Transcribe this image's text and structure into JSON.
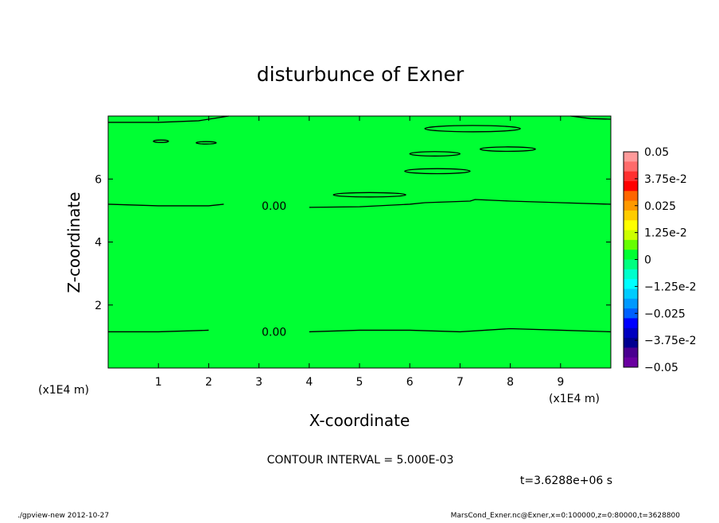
{
  "chart_data": {
    "type": "contour",
    "title": "disturbunce of Exner",
    "xlabel": "X-coordinate",
    "ylabel": "Z-coordinate",
    "x_unit": "(x1E4 m)",
    "y_unit": "(x1E4 m)",
    "xlim": [
      0,
      10
    ],
    "ylim": [
      0,
      8
    ],
    "x_ticks": [
      "1",
      "2",
      "3",
      "4",
      "5",
      "6",
      "7",
      "8",
      "9"
    ],
    "y_ticks": [
      "2",
      "4",
      "6"
    ],
    "x_tick_values": [
      1,
      2,
      3,
      4,
      5,
      6,
      7,
      8,
      9
    ],
    "y_tick_values": [
      2,
      4,
      6
    ],
    "fill_color": "#00ff33",
    "contours": [
      {
        "level_label": "0.00",
        "label_at": [
          3.3,
          5.15
        ],
        "points": [
          [
            0,
            5.2
          ],
          [
            1,
            5.15
          ],
          [
            2,
            5.15
          ],
          [
            2.3,
            5.2
          ],
          [
            3,
            5.15
          ],
          [
            3.3,
            5.15
          ],
          [
            4,
            5.1
          ],
          [
            5,
            5.12
          ],
          [
            6,
            5.2
          ],
          [
            6.3,
            5.25
          ],
          [
            7.2,
            5.3
          ],
          [
            7.3,
            5.35
          ],
          [
            8,
            5.3
          ],
          [
            9,
            5.25
          ],
          [
            10,
            5.2
          ]
        ]
      },
      {
        "level_label": "0.00",
        "label_at": [
          3.3,
          1.15
        ],
        "points": [
          [
            0,
            1.15
          ],
          [
            1,
            1.15
          ],
          [
            2,
            1.2
          ],
          [
            3,
            1.15
          ],
          [
            3.5,
            1.15
          ],
          [
            4,
            1.15
          ],
          [
            5,
            1.2
          ],
          [
            6,
            1.2
          ],
          [
            7,
            1.15
          ],
          [
            8,
            1.25
          ],
          [
            9,
            1.2
          ],
          [
            10,
            1.15
          ]
        ]
      }
    ],
    "closed_contours": [
      {
        "cx": 7.25,
        "cy": 7.6,
        "rx": 0.95,
        "ry": 0.1
      },
      {
        "cx": 7.95,
        "cy": 6.95,
        "rx": 0.55,
        "ry": 0.07
      },
      {
        "cx": 6.5,
        "cy": 6.8,
        "rx": 0.5,
        "ry": 0.07
      },
      {
        "cx": 6.55,
        "cy": 6.25,
        "rx": 0.65,
        "ry": 0.08
      },
      {
        "cx": 5.2,
        "cy": 5.5,
        "rx": 0.72,
        "ry": 0.07
      },
      {
        "cx": 1.05,
        "cy": 7.2,
        "rx": 0.15,
        "ry": 0.03
      },
      {
        "cx": 1.95,
        "cy": 7.15,
        "rx": 0.2,
        "ry": 0.03
      }
    ],
    "top_edge_contours": [
      {
        "points": [
          [
            0,
            7.8
          ],
          [
            1,
            7.8
          ],
          [
            1.8,
            7.85
          ],
          [
            2.4,
            8.0
          ]
        ]
      },
      {
        "points": [
          [
            9.2,
            8.0
          ],
          [
            9.6,
            7.92
          ],
          [
            10,
            7.9
          ]
        ]
      }
    ],
    "colorbar": {
      "labels": [
        "0.05",
        "3.75e-2",
        "0.025",
        "1.25e-2",
        "0",
        "−1.25e-2",
        "−0.025",
        "−3.75e-2",
        "−0.05"
      ],
      "colors": [
        "#ff9a9a",
        "#ff6b6b",
        "#ff3030",
        "#ff0000",
        "#ff6600",
        "#ff9900",
        "#ffcc00",
        "#ffff00",
        "#ccff00",
        "#66ff00",
        "#00ff33",
        "#00ff80",
        "#00ffcc",
        "#00ffff",
        "#00ccff",
        "#0099ff",
        "#0060ff",
        "#0000ff",
        "#0000c0",
        "#000090",
        "#4a0090",
        "#6a00a0"
      ]
    }
  },
  "contour_interval_text": "CONTOUR INTERVAL = 5.000E-03",
  "time_text": "t=3.6288e+06 s",
  "footer_left": "./gpview-new   2012-10-27",
  "footer_right": "MarsCond_Exner.nc@Exner,x=0:100000,z=0:80000,t=3628800"
}
